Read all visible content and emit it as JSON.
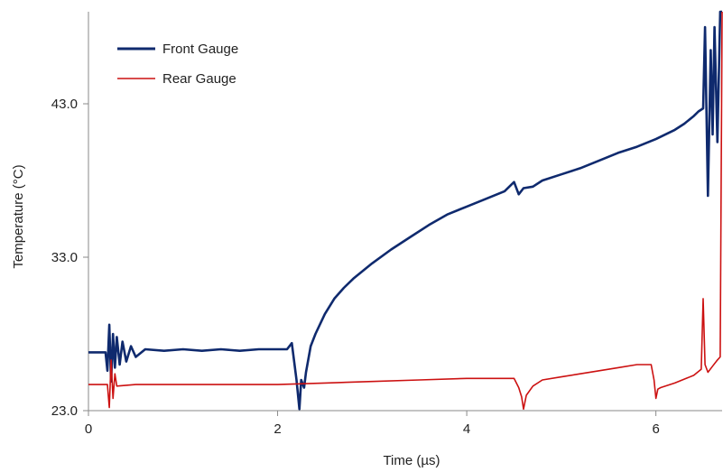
{
  "chart_data": {
    "type": "line",
    "title": "",
    "xlabel": "Time (µs)",
    "ylabel": "Temperature (°C)",
    "xlim": [
      0,
      6.7
    ],
    "ylim": [
      23,
      49
    ],
    "xticks": [
      0,
      2,
      4,
      6
    ],
    "xtick_labels": [
      "0",
      "2",
      "4",
      "6"
    ],
    "yticks": [
      23,
      33,
      43
    ],
    "ytick_labels": [
      "23.0",
      "33.0",
      "43.0"
    ],
    "grid": false,
    "legend_position": "top-left",
    "series": [
      {
        "name": "Front Gauge",
        "color": "#0f2a6e",
        "x": [
          0,
          0.18,
          0.2,
          0.22,
          0.24,
          0.26,
          0.28,
          0.3,
          0.33,
          0.36,
          0.4,
          0.45,
          0.5,
          0.6,
          0.8,
          1.0,
          1.2,
          1.4,
          1.6,
          1.8,
          2.0,
          2.1,
          2.15,
          2.2,
          2.23,
          2.25,
          2.28,
          2.3,
          2.35,
          2.4,
          2.5,
          2.6,
          2.7,
          2.8,
          3.0,
          3.2,
          3.4,
          3.6,
          3.8,
          4.0,
          4.2,
          4.4,
          4.5,
          4.55,
          4.6,
          4.7,
          4.8,
          5.0,
          5.2,
          5.4,
          5.6,
          5.8,
          6.0,
          6.2,
          6.3,
          6.4,
          6.45,
          6.5,
          6.52,
          6.55,
          6.58,
          6.6,
          6.62,
          6.65,
          6.68,
          6.7
        ],
        "y": [
          26.8,
          26.8,
          25.6,
          28.6,
          24.9,
          28.0,
          25.8,
          27.8,
          26.0,
          27.5,
          26.2,
          27.2,
          26.5,
          27.0,
          26.9,
          27.0,
          26.9,
          27.0,
          26.9,
          27.0,
          27.0,
          27.0,
          27.4,
          25.0,
          23.1,
          25.0,
          24.5,
          25.5,
          27.2,
          28.0,
          29.3,
          30.3,
          31.0,
          31.6,
          32.6,
          33.5,
          34.3,
          35.1,
          35.8,
          36.3,
          36.8,
          37.3,
          37.9,
          37.1,
          37.5,
          37.6,
          38.0,
          38.4,
          38.8,
          39.3,
          39.8,
          40.2,
          40.7,
          41.3,
          41.7,
          42.2,
          42.5,
          42.7,
          48.0,
          37.0,
          46.5,
          41.0,
          48.0,
          40.5,
          49.0,
          49.0
        ]
      },
      {
        "name": "Rear Gauge",
        "color": "#cc1111",
        "x": [
          0,
          0.2,
          0.22,
          0.24,
          0.26,
          0.28,
          0.3,
          0.5,
          1.0,
          1.5,
          2.0,
          2.5,
          3.0,
          3.5,
          4.0,
          4.3,
          4.5,
          4.55,
          4.58,
          4.6,
          4.63,
          4.7,
          4.8,
          5.0,
          5.2,
          5.4,
          5.6,
          5.8,
          5.95,
          5.98,
          6.0,
          6.02,
          6.05,
          6.2,
          6.4,
          6.48,
          6.5,
          6.52,
          6.55,
          6.6,
          6.65,
          6.68,
          6.7
        ],
        "y": [
          24.7,
          24.7,
          23.2,
          26.3,
          23.8,
          25.4,
          24.6,
          24.7,
          24.7,
          24.7,
          24.7,
          24.8,
          24.9,
          25.0,
          25.1,
          25.1,
          25.1,
          24.5,
          23.9,
          23.1,
          24.0,
          24.6,
          25.0,
          25.2,
          25.4,
          25.6,
          25.8,
          26.0,
          26.0,
          25.0,
          23.8,
          24.4,
          24.5,
          24.8,
          25.3,
          25.7,
          30.3,
          26.0,
          25.5,
          25.9,
          26.3,
          26.5,
          49.0
        ]
      }
    ]
  }
}
